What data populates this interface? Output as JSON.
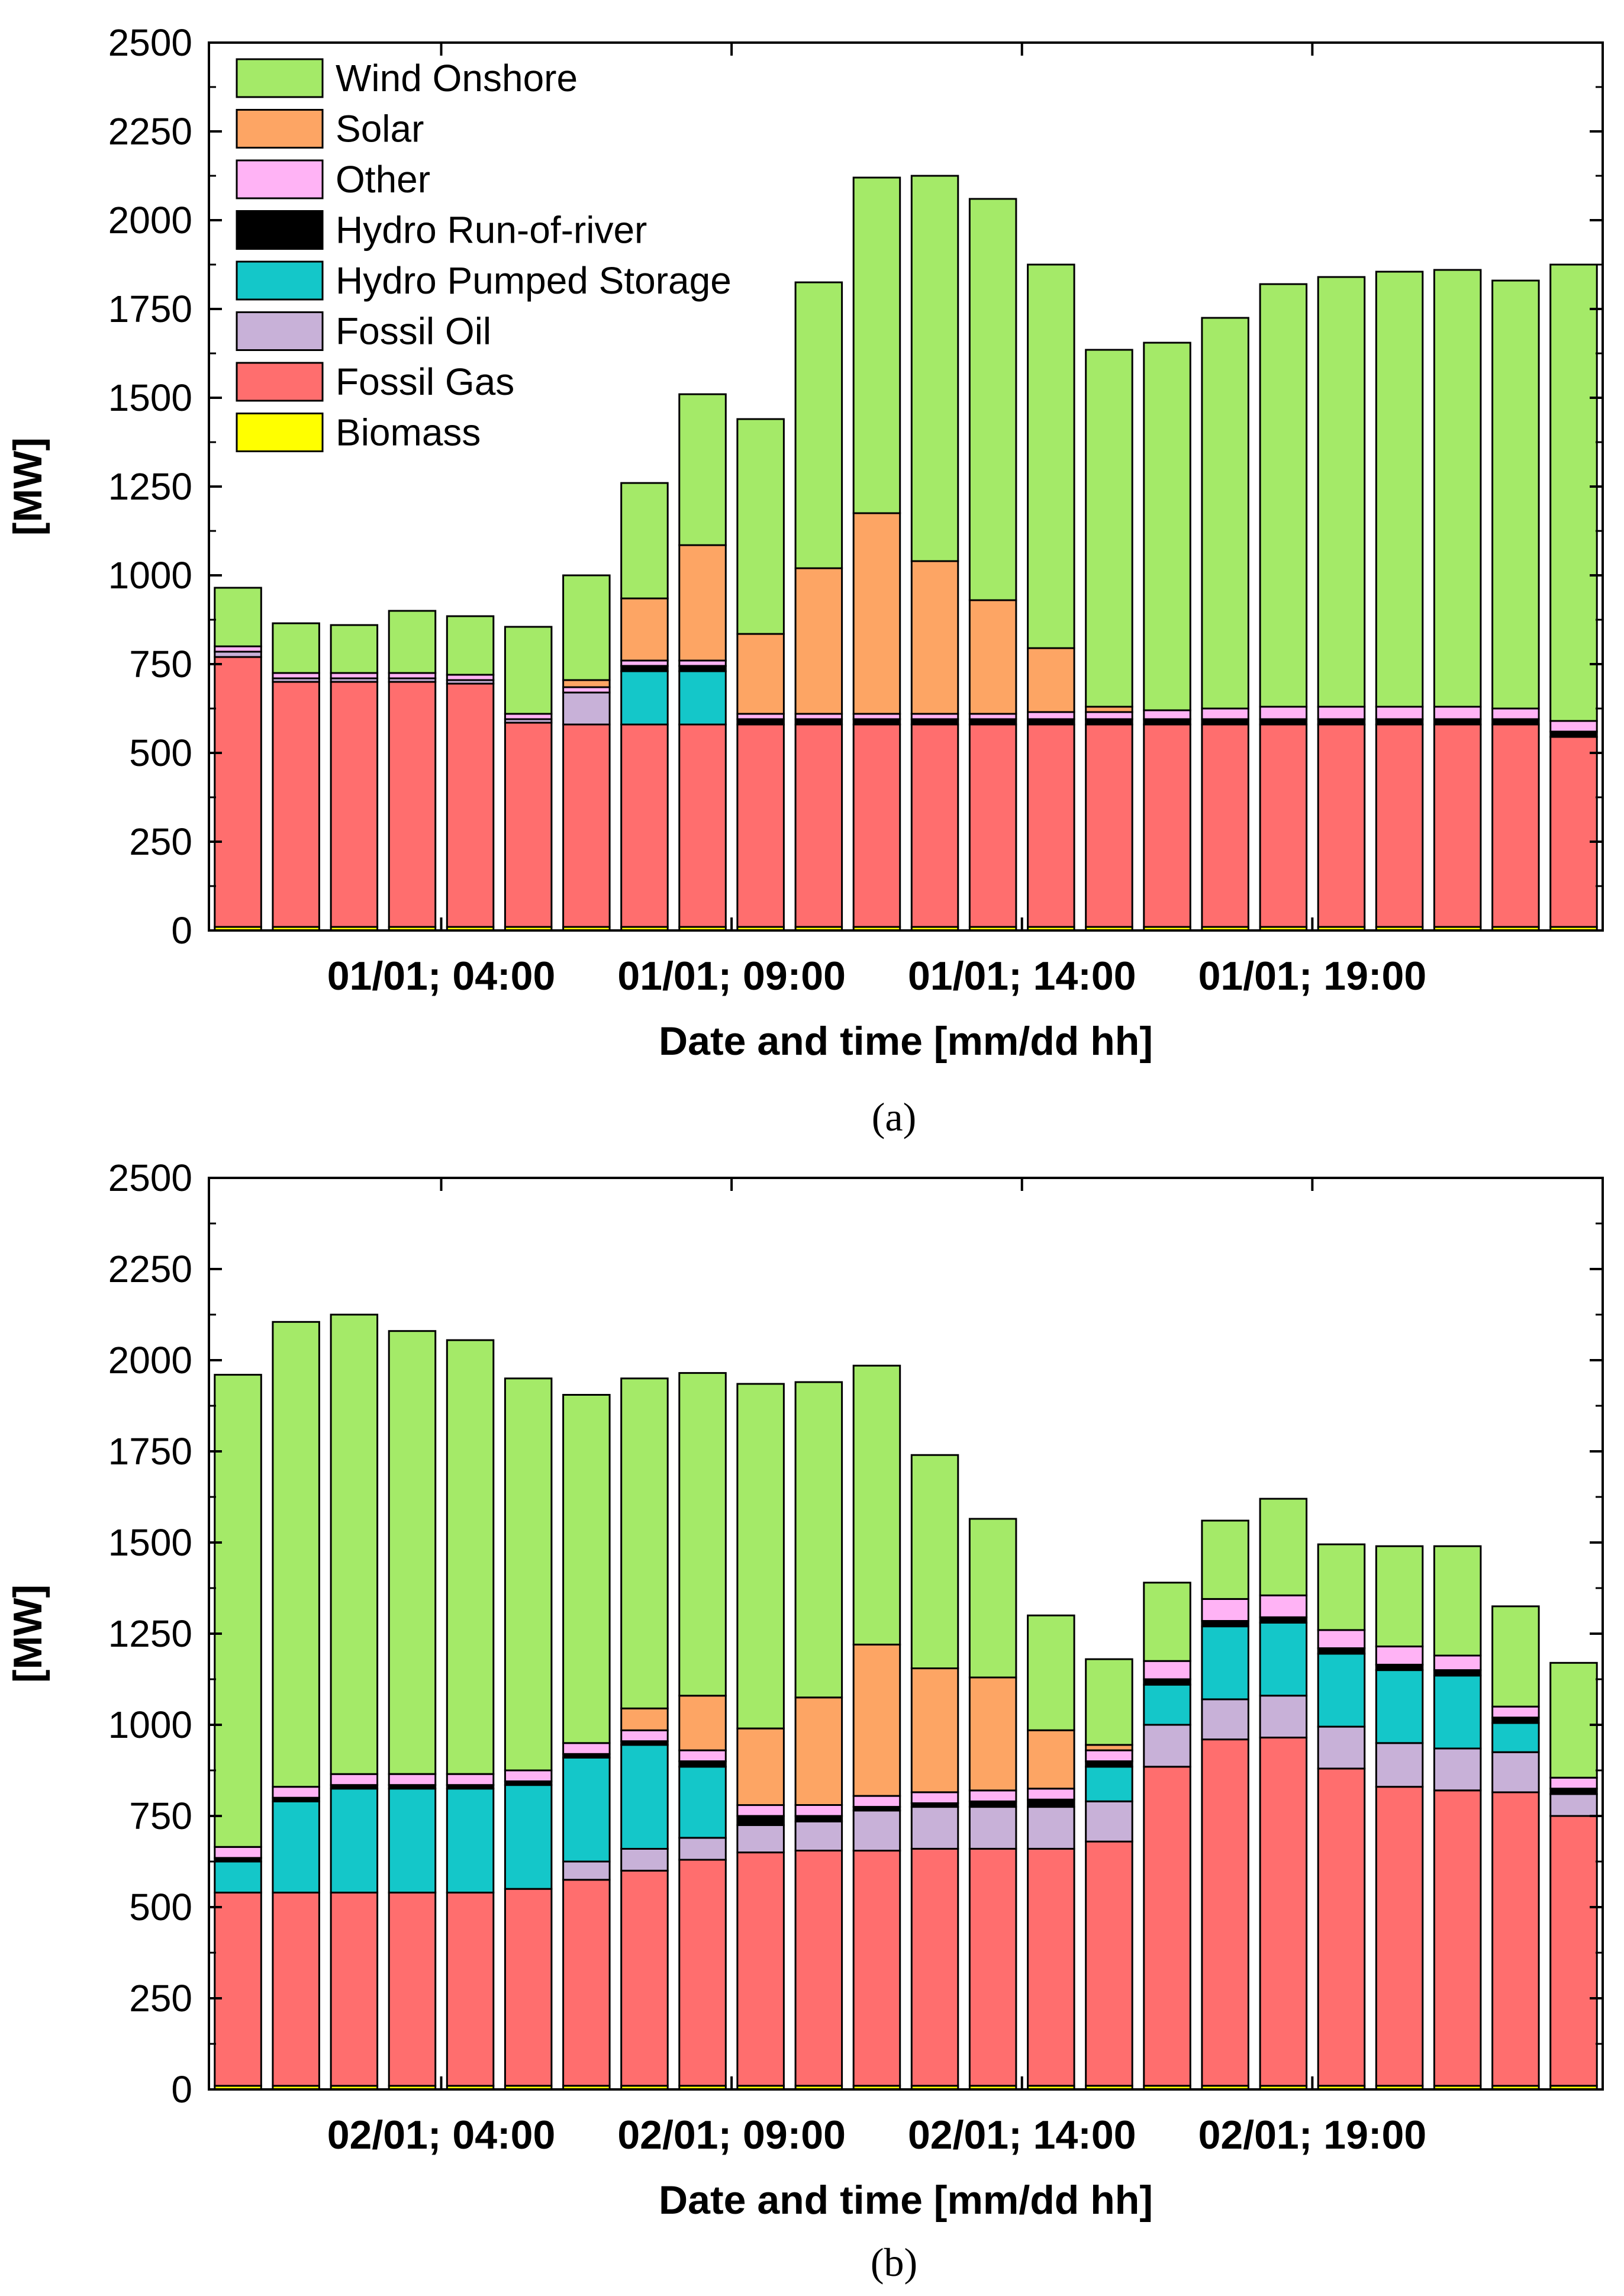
{
  "legend": [
    {
      "name": "Wind Onshore",
      "color": "#a4ea68"
    },
    {
      "name": "Solar",
      "color": "#fda564"
    },
    {
      "name": "Other",
      "color": "#ffb3f5"
    },
    {
      "name": "Hydro Run-of-river",
      "color": "#000000"
    },
    {
      "name": "Hydro Pumped Storage",
      "color": "#14c7c9"
    },
    {
      "name": "Fossil Oil",
      "color": "#c8b1d8"
    },
    {
      "name": "Fossil Gas",
      "color": "#ff6e6e"
    },
    {
      "name": "Biomass",
      "color": "#ffff00"
    }
  ],
  "chart_data": [
    {
      "type": "bar",
      "stacked": true,
      "caption": "(a)",
      "xlabel": "Date and time [mm/dd hh]",
      "ylabel": "[MW]",
      "ylim": [
        0,
        2500
      ],
      "yticks": [
        0,
        250,
        500,
        750,
        1000,
        1250,
        1500,
        1750,
        2000,
        2250,
        2500
      ],
      "xtick_labels": [
        {
          "label": "01/01; 04:00",
          "index": 4
        },
        {
          "label": "01/01; 09:00",
          "index": 9
        },
        {
          "label": "01/01; 14:00",
          "index": 14
        },
        {
          "label": "01/01; 19:00",
          "index": 19
        }
      ],
      "grid": false,
      "legend_position": "top-left",
      "n_bars": 24,
      "series": [
        {
          "name": "Biomass",
          "values": [
            10,
            10,
            10,
            10,
            10,
            10,
            10,
            10,
            10,
            10,
            10,
            10,
            10,
            10,
            10,
            10,
            10,
            10,
            10,
            10,
            10,
            10,
            10,
            10
          ]
        },
        {
          "name": "Fossil Gas",
          "values": [
            760,
            690,
            690,
            690,
            685,
            575,
            570,
            570,
            570,
            570,
            570,
            570,
            570,
            570,
            570,
            570,
            570,
            570,
            570,
            570,
            570,
            570,
            570,
            535
          ]
        },
        {
          "name": "Fossil Oil",
          "values": [
            15,
            10,
            10,
            10,
            10,
            10,
            90,
            0,
            0,
            0,
            0,
            0,
            0,
            0,
            0,
            0,
            0,
            0,
            0,
            0,
            0,
            0,
            0,
            0
          ]
        },
        {
          "name": "Hydro Pumped Storage",
          "values": [
            0,
            0,
            0,
            0,
            0,
            0,
            0,
            150,
            150,
            0,
            0,
            0,
            0,
            0,
            0,
            0,
            0,
            0,
            0,
            0,
            0,
            0,
            0,
            0
          ]
        },
        {
          "name": "Hydro Run-of-river",
          "values": [
            0,
            0,
            0,
            0,
            0,
            0,
            0,
            15,
            15,
            15,
            15,
            15,
            15,
            15,
            15,
            15,
            15,
            15,
            15,
            15,
            15,
            15,
            15,
            15
          ]
        },
        {
          "name": "Other",
          "values": [
            15,
            15,
            15,
            15,
            15,
            15,
            15,
            15,
            15,
            15,
            15,
            15,
            15,
            15,
            20,
            20,
            25,
            30,
            35,
            35,
            35,
            35,
            30,
            30
          ]
        },
        {
          "name": "Solar",
          "values": [
            0,
            0,
            0,
            0,
            0,
            0,
            20,
            175,
            325,
            225,
            410,
            565,
            430,
            320,
            180,
            15,
            0,
            0,
            0,
            0,
            0,
            0,
            0,
            0
          ]
        },
        {
          "name": "Wind Onshore",
          "values": [
            165,
            140,
            135,
            175,
            165,
            245,
            295,
            325,
            425,
            605,
            805,
            945,
            1085,
            1130,
            1080,
            1005,
            1035,
            1100,
            1190,
            1210,
            1225,
            1230,
            1205,
            1285
          ]
        }
      ]
    },
    {
      "type": "bar",
      "stacked": true,
      "caption": "(b)",
      "xlabel": "Date and time [mm/dd hh]",
      "ylabel": "[MW]",
      "ylim": [
        0,
        2500
      ],
      "yticks": [
        0,
        250,
        500,
        750,
        1000,
        1250,
        1500,
        1750,
        2000,
        2250,
        2500
      ],
      "xtick_labels": [
        {
          "label": "02/01; 04:00",
          "index": 4
        },
        {
          "label": "02/01; 09:00",
          "index": 9
        },
        {
          "label": "02/01; 14:00",
          "index": 14
        },
        {
          "label": "02/01; 19:00",
          "index": 19
        }
      ],
      "grid": false,
      "n_bars": 24,
      "series": [
        {
          "name": "Biomass",
          "values": [
            10,
            10,
            10,
            10,
            10,
            10,
            10,
            10,
            10,
            10,
            10,
            10,
            10,
            10,
            10,
            10,
            10,
            10,
            10,
            10,
            10,
            10,
            10,
            10
          ]
        },
        {
          "name": "Fossil Gas",
          "values": [
            530,
            530,
            530,
            530,
            530,
            540,
            565,
            590,
            620,
            640,
            645,
            645,
            650,
            650,
            650,
            670,
            875,
            950,
            955,
            870,
            820,
            810,
            805,
            740
          ]
        },
        {
          "name": "Fossil Oil",
          "values": [
            0,
            0,
            0,
            0,
            0,
            0,
            50,
            60,
            60,
            75,
            80,
            110,
            115,
            115,
            115,
            110,
            115,
            110,
            115,
            115,
            120,
            115,
            110,
            60
          ]
        },
        {
          "name": "Hydro Pumped Storage",
          "values": [
            85,
            250,
            285,
            285,
            285,
            285,
            285,
            285,
            195,
            0,
            0,
            0,
            0,
            0,
            0,
            95,
            110,
            200,
            200,
            200,
            200,
            200,
            80,
            0
          ]
        },
        {
          "name": "Hydro Run-of-river",
          "values": [
            10,
            10,
            10,
            10,
            10,
            10,
            10,
            10,
            15,
            25,
            15,
            10,
            10,
            15,
            20,
            15,
            15,
            15,
            15,
            15,
            15,
            15,
            15,
            15
          ]
        },
        {
          "name": "Other",
          "values": [
            30,
            30,
            30,
            30,
            30,
            30,
            30,
            30,
            30,
            30,
            30,
            30,
            30,
            30,
            30,
            30,
            50,
            60,
            60,
            50,
            50,
            40,
            30,
            30
          ]
        },
        {
          "name": "Solar",
          "values": [
            0,
            0,
            0,
            0,
            0,
            0,
            0,
            60,
            150,
            210,
            295,
            415,
            340,
            310,
            160,
            15,
            0,
            0,
            0,
            0,
            0,
            0,
            0,
            0
          ]
        },
        {
          "name": "Wind Onshore",
          "values": [
            1295,
            1275,
            1260,
            1215,
            1190,
            1075,
            955,
            905,
            885,
            945,
            865,
            765,
            585,
            435,
            315,
            235,
            215,
            215,
            265,
            235,
            275,
            300,
            275,
            315
          ]
        }
      ]
    }
  ]
}
